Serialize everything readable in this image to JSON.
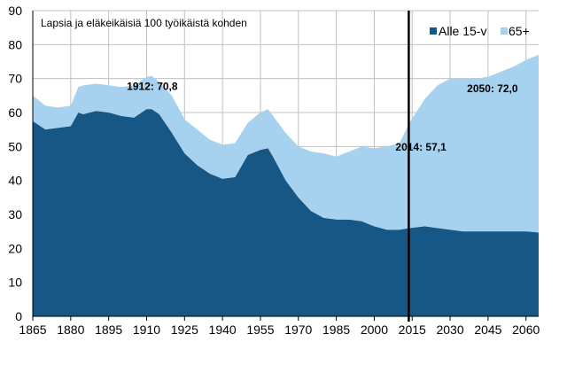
{
  "chart_data": {
    "type": "area",
    "stacked": true,
    "title": "Lapsia ja eläkeikäisiä 100 työikäistä kohden",
    "xlabel": "",
    "ylabel": "",
    "xlim": [
      1865,
      2065
    ],
    "ylim": [
      0,
      90
    ],
    "grid": true,
    "legend_position": "top-right",
    "x_ticks": [
      "1865",
      "1880",
      "1895",
      "1910",
      "1925",
      "1940",
      "1955",
      "1970",
      "1985",
      "2000",
      "2015",
      "2030",
      "2045",
      "2060"
    ],
    "y_ticks": [
      "0",
      "10",
      "20",
      "30",
      "40",
      "50",
      "60",
      "70",
      "80",
      "90"
    ],
    "x": [
      1865,
      1870,
      1875,
      1880,
      1883,
      1885,
      1890,
      1895,
      1900,
      1905,
      1910,
      1912,
      1915,
      1920,
      1925,
      1930,
      1935,
      1940,
      1945,
      1950,
      1955,
      1958,
      1960,
      1965,
      1970,
      1975,
      1980,
      1985,
      1990,
      1995,
      2000,
      2005,
      2010,
      2014,
      2020,
      2025,
      2030,
      2035,
      2040,
      2045,
      2050,
      2055,
      2060,
      2065
    ],
    "series": [
      {
        "name": "Alle 15-v",
        "color": "#175785",
        "values": [
          57.5,
          55,
          55.5,
          56,
          60,
          59.5,
          60.5,
          60,
          59,
          58.5,
          61,
          61,
          59.5,
          54,
          48,
          44.5,
          42,
          40.5,
          41,
          47.5,
          49,
          49.5,
          47,
          40,
          35,
          31,
          29,
          28.5,
          28.5,
          28,
          26.5,
          25.5,
          25.5,
          26,
          26.5,
          26,
          25.5,
          25,
          25,
          25,
          25,
          25,
          25,
          24.7
        ]
      },
      {
        "name": "65+",
        "color": "#a6d1ef",
        "values": [
          7.5,
          7,
          6,
          6,
          7.5,
          8.5,
          8,
          8,
          8.5,
          9.5,
          9.5,
          9.8,
          9.5,
          11,
          10,
          10.5,
          10,
          10,
          10,
          9.5,
          11,
          11.5,
          12,
          14,
          15,
          17.5,
          19,
          18.5,
          20,
          22,
          23,
          24.5,
          25.5,
          31.1,
          37.5,
          42,
          44.5,
          45,
          45,
          45.5,
          47,
          48.5,
          50.5,
          52.3
        ]
      }
    ],
    "marker_line_year": 2014,
    "annotations": [
      {
        "text": "1912: 70,8",
        "x": 1912,
        "y": 70.8
      },
      {
        "text": "2014: 57,1",
        "x": 2014,
        "y": 57.1
      },
      {
        "text": "2050: 72,0",
        "x": 2050,
        "y": 72.0
      }
    ]
  }
}
